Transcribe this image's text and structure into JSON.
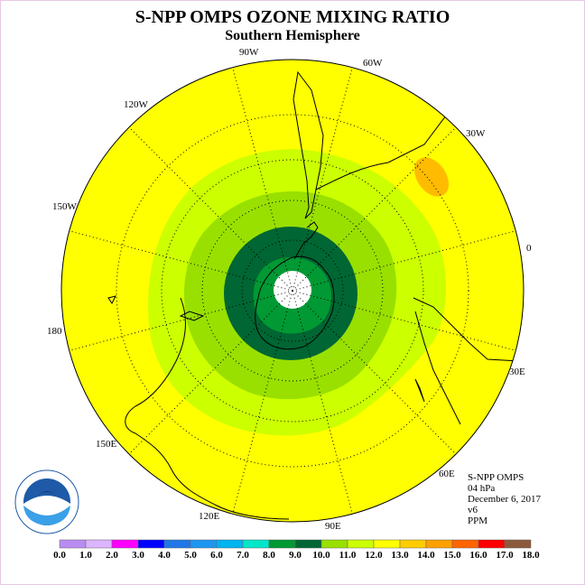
{
  "title": "S-NPP OMPS OZONE MIXING RATIO",
  "subtitle": "Southern Hemisphere",
  "longitude_labels": {
    "lon_90w": "90W",
    "lon_60w": "60W",
    "lon_30w": "30W",
    "lon_0": "0",
    "lon_30e": "30E",
    "lon_60e": "60E",
    "lon_90e": "90E",
    "lon_120e": "120E",
    "lon_150e": "150E",
    "lon_180": "180",
    "lon_150w": "150W",
    "lon_120w": "120W"
  },
  "info": {
    "instrument": "S-NPP OMPS",
    "level": "04 hPa",
    "date": "December 6, 2017",
    "version": "v6",
    "units": "PPM"
  },
  "logo_text": "NOAA",
  "colors": {
    "yellow": "#ffff00",
    "light_green": "#ccff00",
    "green": "#99e000",
    "medium_green": "#009933",
    "dark_green": "#006633",
    "orange": "#ffbb00"
  },
  "colorbar": {
    "labels": [
      "0.0",
      "1.0",
      "2.0",
      "3.0",
      "4.0",
      "5.0",
      "6.0",
      "7.0",
      "8.0",
      "9.0",
      "10.0",
      "11.0",
      "12.0",
      "13.0",
      "14.0",
      "15.0",
      "16.0",
      "17.0",
      "18.0"
    ],
    "colors": [
      "#b98df0",
      "#dcb4ff",
      "#ff00ff",
      "#0000ff",
      "#1f78e6",
      "#1e96f0",
      "#00b4f0",
      "#00e6c8",
      "#009933",
      "#006633",
      "#99e000",
      "#ccff00",
      "#ffff00",
      "#ffcc00",
      "#ffa000",
      "#ff6400",
      "#ff0000",
      "#8b5a3c"
    ]
  }
}
